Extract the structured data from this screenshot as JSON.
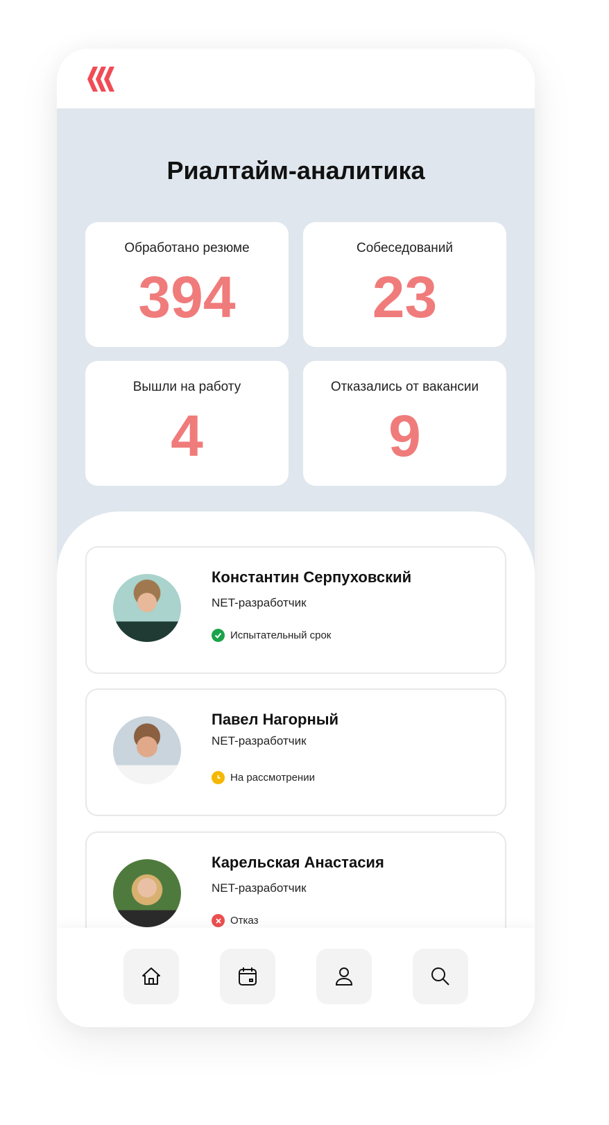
{
  "title": "Риалтайм-аналитика",
  "stats": [
    {
      "label": "Обработано резюме",
      "value": "394"
    },
    {
      "label": "Собеседований",
      "value": "23"
    },
    {
      "label": "Вышли на работу",
      "value": "4"
    },
    {
      "label": "Отказались от вакансии",
      "value": "9"
    }
  ],
  "candidates": [
    {
      "name": "Константин Серпуховский",
      "role": "NET-разработчик",
      "status": "Испытательный срок",
      "status_icon": "check-circle-icon",
      "status_color": "#1aa34a"
    },
    {
      "name": "Павел Нагорный",
      "role": "NET-разработчик",
      "status": "На рассмотрении",
      "status_icon": "clock-icon",
      "status_color": "#f5b800"
    },
    {
      "name": "Карельская Анастасия",
      "role": "NET-разработчик",
      "status": "Отказ",
      "status_icon": "x-circle-icon",
      "status_color": "#ec4f4f"
    }
  ],
  "nav": [
    "home-icon",
    "calendar-icon",
    "user-icon",
    "search-icon"
  ],
  "colors": {
    "accent": "#f07b7b",
    "logo": "#f04c55",
    "background": "#dfe6ed"
  }
}
